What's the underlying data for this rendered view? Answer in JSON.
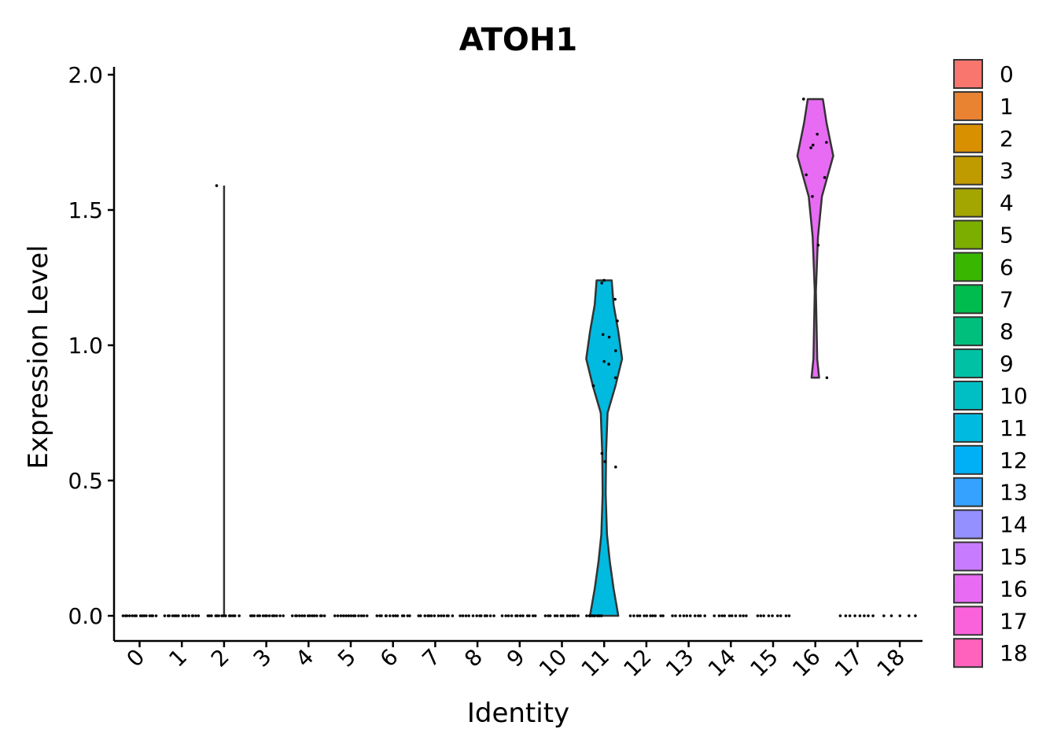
{
  "chart_data": {
    "type": "violin",
    "title": "ATOH1",
    "xlabel": "Identity",
    "ylabel": "Expression Level",
    "ylim": [
      -0.1,
      2.0
    ],
    "yticks": [
      "0.0",
      "0.5",
      "1.0",
      "1.5",
      "2.0"
    ],
    "ytick_values": [
      0,
      0.5,
      1.0,
      1.5,
      2.0
    ],
    "categories": [
      "0",
      "1",
      "2",
      "3",
      "4",
      "5",
      "6",
      "7",
      "8",
      "9",
      "10",
      "11",
      "12",
      "13",
      "14",
      "15",
      "16",
      "17",
      "18"
    ],
    "colors": [
      "#F8766D",
      "#EA8331",
      "#D89000",
      "#C09B00",
      "#A3A500",
      "#7CAE00",
      "#39B600",
      "#00BB4E",
      "#00BF7D",
      "#00C1A3",
      "#00BFC4",
      "#00BAE0",
      "#00B0F6",
      "#35A2FF",
      "#9590FF",
      "#C77CFF",
      "#E76BF3",
      "#FA62DB",
      "#FF62BC"
    ],
    "grid": false,
    "legend_position": "right",
    "series": [
      {
        "category": "0",
        "points": [
          0,
          0,
          0,
          0,
          0,
          0,
          0,
          0,
          0,
          0,
          0,
          0,
          0,
          0,
          0
        ]
      },
      {
        "category": "1",
        "points": [
          0,
          0,
          0,
          0,
          0,
          0,
          0,
          0,
          0,
          0,
          0,
          0,
          0,
          0,
          0
        ]
      },
      {
        "category": "2",
        "points": [
          0,
          0,
          0,
          0,
          0,
          0,
          0,
          0,
          0,
          0,
          0,
          0,
          0,
          0,
          1.59
        ]
      },
      {
        "category": "3",
        "points": [
          0,
          0,
          0,
          0,
          0,
          0,
          0,
          0,
          0,
          0,
          0,
          0,
          0,
          0
        ]
      },
      {
        "category": "4",
        "points": [
          0,
          0,
          0,
          0,
          0,
          0,
          0,
          0,
          0,
          0,
          0,
          0,
          0,
          0
        ]
      },
      {
        "category": "5",
        "points": [
          0,
          0,
          0,
          0,
          0,
          0,
          0,
          0,
          0,
          0,
          0,
          0,
          0
        ]
      },
      {
        "category": "6",
        "points": [
          0,
          0,
          0,
          0,
          0,
          0,
          0,
          0,
          0,
          0,
          0,
          0,
          0
        ]
      },
      {
        "category": "7",
        "points": [
          0,
          0,
          0,
          0,
          0,
          0,
          0,
          0,
          0,
          0,
          0,
          0,
          0
        ]
      },
      {
        "category": "8",
        "points": [
          0,
          0,
          0,
          0,
          0,
          0,
          0,
          0,
          0,
          0,
          0,
          0
        ]
      },
      {
        "category": "9",
        "points": [
          0,
          0,
          0,
          0,
          0,
          0,
          0,
          0,
          0,
          0,
          0,
          0
        ]
      },
      {
        "category": "10",
        "points": [
          0,
          0,
          0,
          0,
          0,
          0,
          0,
          0,
          0,
          0,
          0,
          0
        ]
      },
      {
        "category": "11",
        "points": [
          0,
          0,
          0,
          0,
          0,
          0,
          0,
          0,
          0,
          0,
          0,
          0.55,
          0.57,
          0.6,
          0.85,
          0.88,
          0.93,
          0.94,
          0.98,
          1.03,
          1.04,
          1.09,
          1.17,
          1.23,
          1.24
        ]
      },
      {
        "category": "12",
        "points": [
          0,
          0,
          0,
          0,
          0,
          0,
          0,
          0,
          0,
          0,
          0
        ]
      },
      {
        "category": "13",
        "points": [
          0,
          0,
          0,
          0,
          0,
          0,
          0,
          0,
          0,
          0
        ]
      },
      {
        "category": "14",
        "points": [
          0,
          0,
          0,
          0,
          0,
          0,
          0,
          0,
          0,
          0
        ]
      },
      {
        "category": "15",
        "points": [
          0,
          0,
          0,
          0,
          0,
          0,
          0,
          0,
          0
        ]
      },
      {
        "category": "16",
        "points": [
          0.88,
          1.37,
          1.55,
          1.62,
          1.63,
          1.73,
          1.74,
          1.75,
          1.78,
          1.91
        ]
      },
      {
        "category": "17",
        "points": [
          0,
          0,
          0,
          0,
          0,
          0,
          0,
          0
        ]
      },
      {
        "category": "18",
        "points": [
          0,
          0,
          0,
          0,
          0
        ]
      }
    ],
    "violins": [
      {
        "category": "2",
        "profile": [
          [
            0,
            0
          ],
          [
            1.59,
            0
          ]
        ]
      },
      {
        "category": "11",
        "profile": [
          [
            0,
            0.75
          ],
          [
            0.1,
            0.5
          ],
          [
            0.2,
            0.3
          ],
          [
            0.3,
            0.15
          ],
          [
            0.45,
            0.08
          ],
          [
            0.6,
            0.1
          ],
          [
            0.75,
            0.18
          ],
          [
            0.85,
            0.6
          ],
          [
            0.95,
            0.95
          ],
          [
            1.05,
            0.75
          ],
          [
            1.15,
            0.5
          ],
          [
            1.24,
            0.4
          ]
        ]
      },
      {
        "category": "16",
        "profile": [
          [
            0.88,
            0.2
          ],
          [
            0.95,
            0.1
          ],
          [
            1.2,
            0.03
          ],
          [
            1.4,
            0.14
          ],
          [
            1.55,
            0.35
          ],
          [
            1.7,
            0.95
          ],
          [
            1.82,
            0.6
          ],
          [
            1.91,
            0.4
          ]
        ]
      }
    ]
  }
}
